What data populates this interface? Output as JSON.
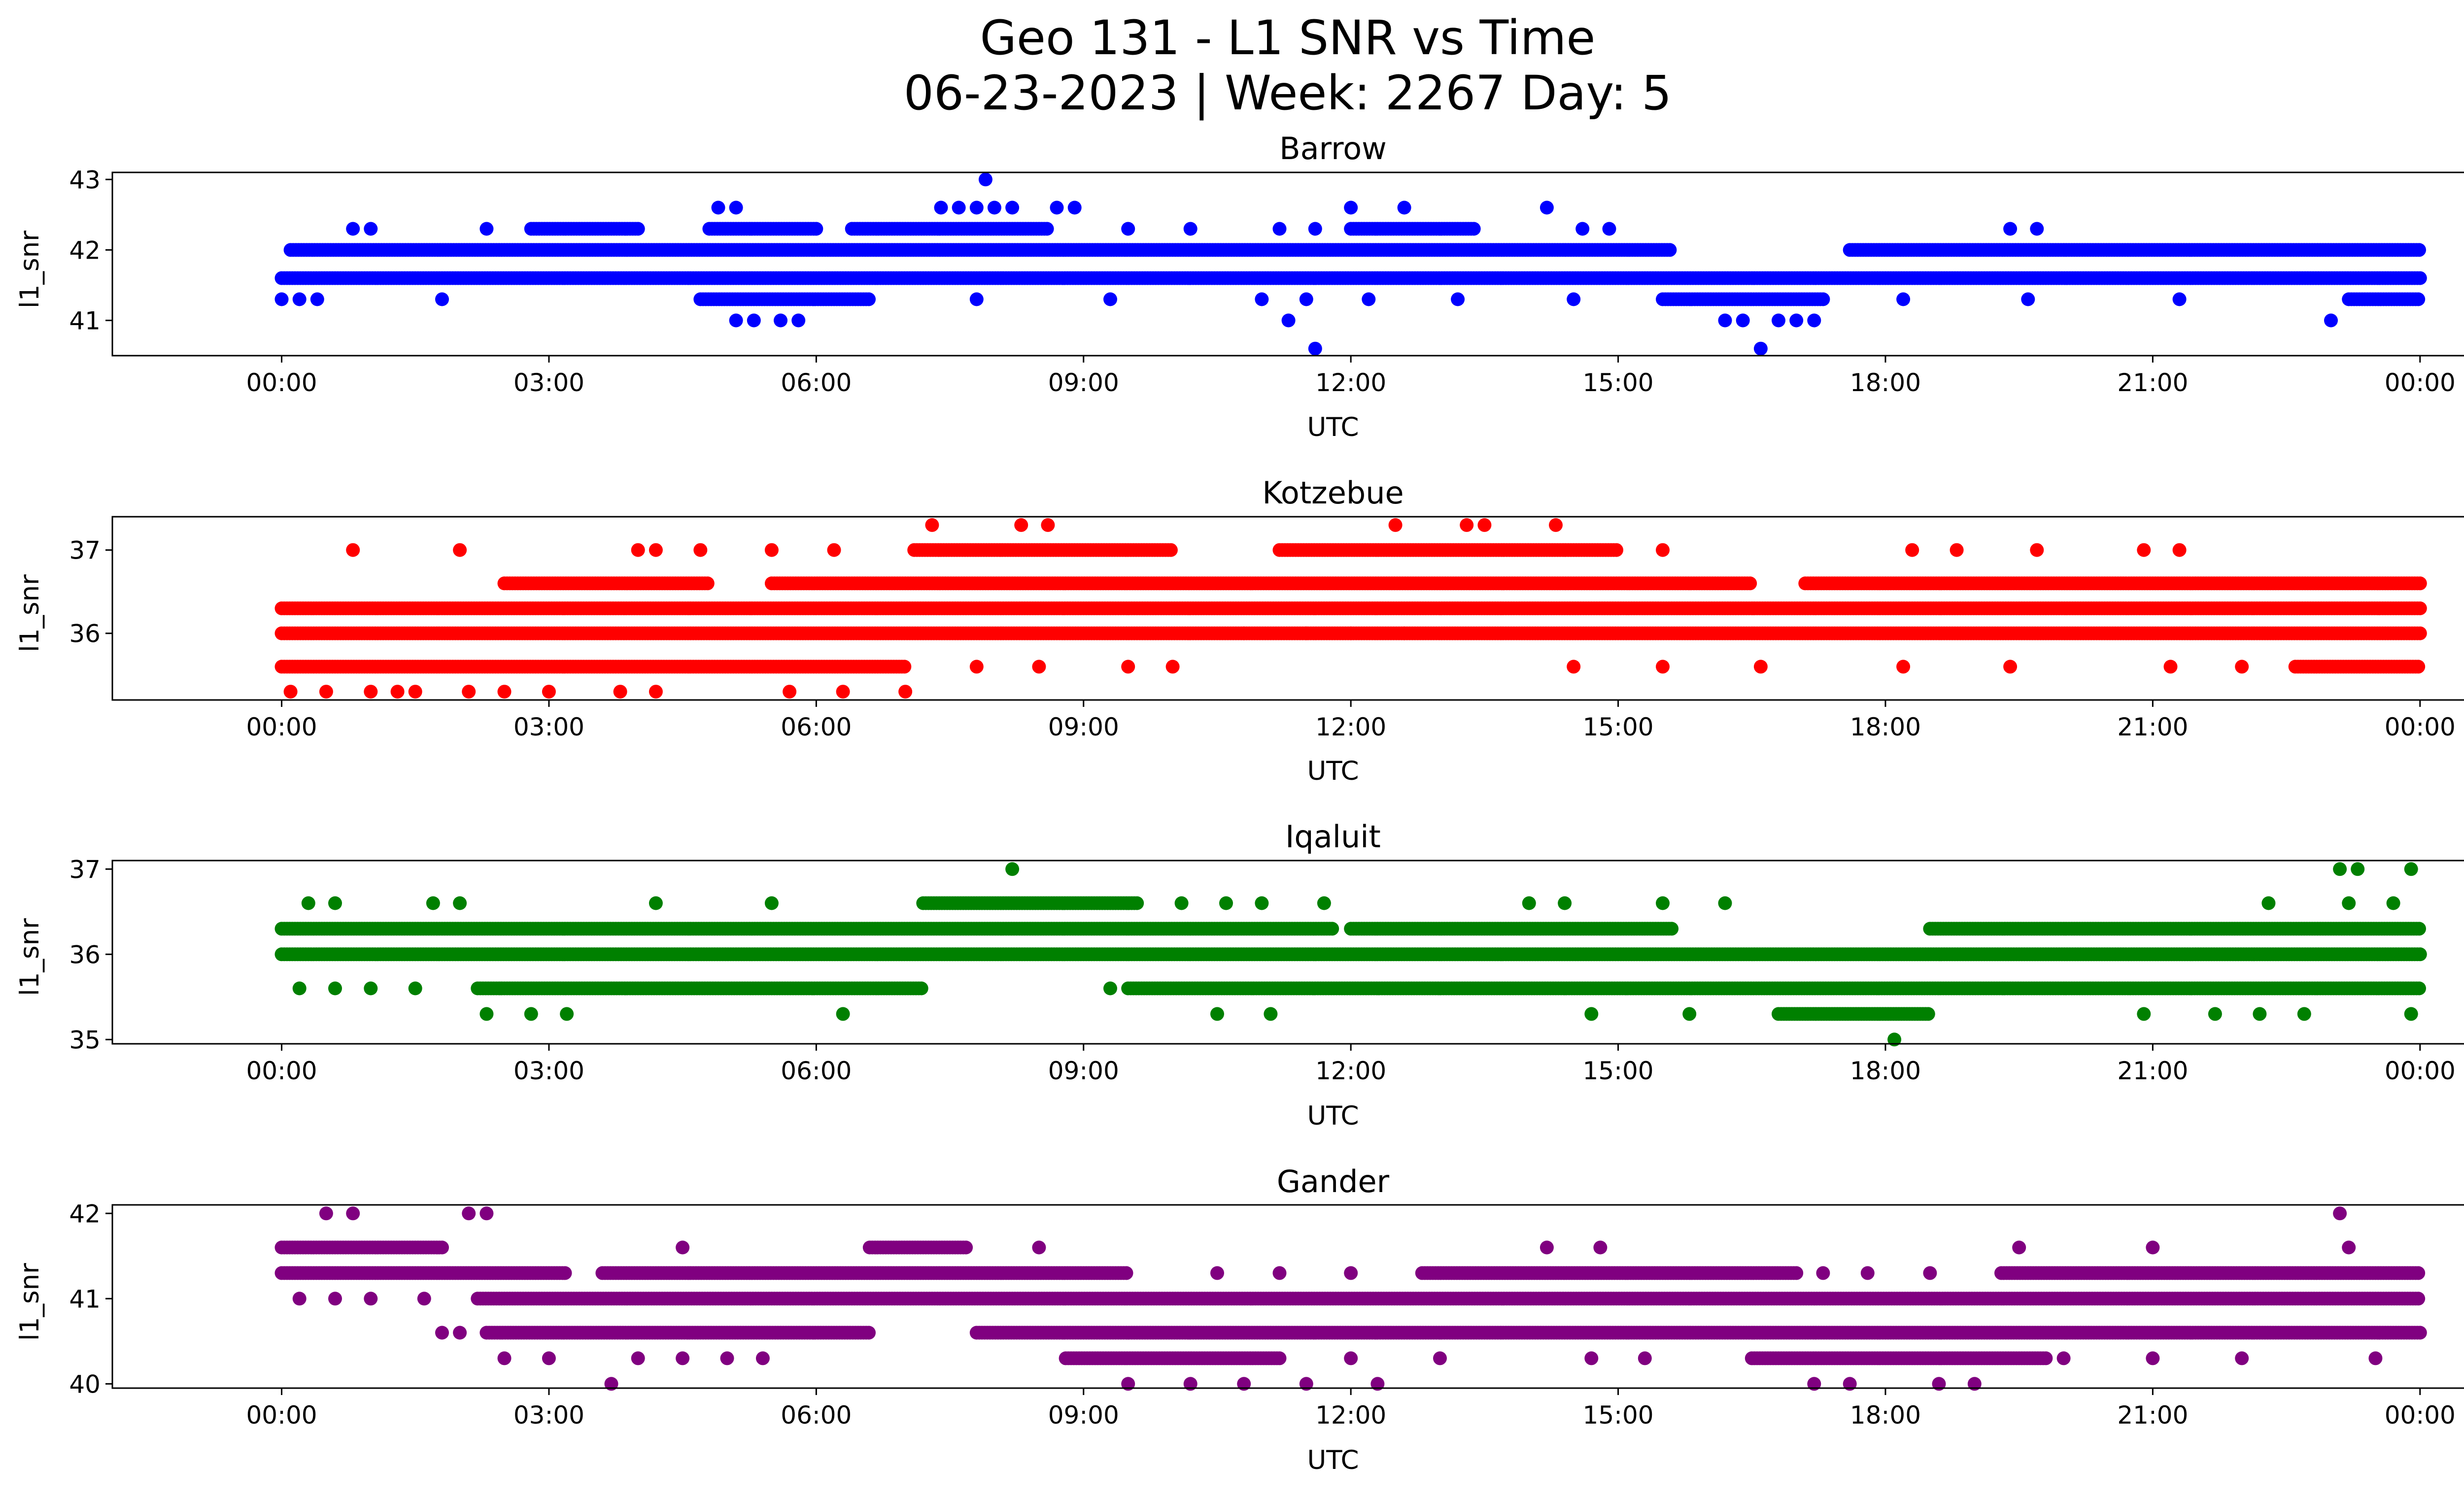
{
  "figure": {
    "title_line1": "Geo 131 - L1 SNR vs Time",
    "title_line2": "06-23-2023 | Week: 2267 Day: 5"
  },
  "chart_data": [
    {
      "type": "scatter",
      "title": "Barrow",
      "xlabel": "UTC",
      "ylabel": "l1_snr",
      "color": "#0000ff",
      "x_unit": "hours",
      "xlim": [
        -1.9,
        25.5
      ],
      "ylim": [
        40.5,
        43.1
      ],
      "x_ticks": [
        "00:00",
        "03:00",
        "06:00",
        "09:00",
        "12:00",
        "15:00",
        "18:00",
        "21:00",
        "00:00"
      ],
      "y_ticks": [
        41,
        42,
        43
      ],
      "levels": [
        {
          "y": 41.6,
          "ranges": [
            [
              0,
              24
            ]
          ]
        },
        {
          "y": 42.0,
          "ranges": [
            [
              0.1,
              15.6
            ],
            [
              17.6,
              24
            ]
          ]
        },
        {
          "y": 41.3,
          "ranges": [
            [
              4.7,
              6.6
            ],
            [
              15.5,
              17.3
            ],
            [
              23.2,
              24
            ]
          ]
        },
        {
          "y": 42.3,
          "ranges": [
            [
              2.8,
              4.0
            ],
            [
              4.8,
              6.0
            ],
            [
              6.4,
              8.6
            ],
            [
              12.0,
              13.4
            ]
          ]
        }
      ],
      "points": [
        [
          0.0,
          41.3
        ],
        [
          0.2,
          41.3
        ],
        [
          0.4,
          41.3
        ],
        [
          1.8,
          41.3
        ],
        [
          7.8,
          41.3
        ],
        [
          9.3,
          41.3
        ],
        [
          11.0,
          41.3
        ],
        [
          11.5,
          41.3
        ],
        [
          12.2,
          41.3
        ],
        [
          13.2,
          41.3
        ],
        [
          14.5,
          41.3
        ],
        [
          18.2,
          41.3
        ],
        [
          19.6,
          41.3
        ],
        [
          21.3,
          41.3
        ],
        [
          0.8,
          42.3
        ],
        [
          1.0,
          42.3
        ],
        [
          2.3,
          42.3
        ],
        [
          9.5,
          42.3
        ],
        [
          10.2,
          42.3
        ],
        [
          11.2,
          42.3
        ],
        [
          11.6,
          42.3
        ],
        [
          14.6,
          42.3
        ],
        [
          14.9,
          42.3
        ],
        [
          19.4,
          42.3
        ],
        [
          19.7,
          42.3
        ],
        [
          4.9,
          42.6
        ],
        [
          5.1,
          42.6
        ],
        [
          7.4,
          42.6
        ],
        [
          7.6,
          42.6
        ],
        [
          7.8,
          42.6
        ],
        [
          8.0,
          42.6
        ],
        [
          8.2,
          42.6
        ],
        [
          8.7,
          42.6
        ],
        [
          8.9,
          42.6
        ],
        [
          12.0,
          42.6
        ],
        [
          12.6,
          42.6
        ],
        [
          14.2,
          42.6
        ],
        [
          7.9,
          43.0
        ],
        [
          5.1,
          41.0
        ],
        [
          5.3,
          41.0
        ],
        [
          5.6,
          41.0
        ],
        [
          5.8,
          41.0
        ],
        [
          11.3,
          41.0
        ],
        [
          16.2,
          41.0
        ],
        [
          16.4,
          41.0
        ],
        [
          16.8,
          41.0
        ],
        [
          17.0,
          41.0
        ],
        [
          17.2,
          41.0
        ],
        [
          23.0,
          41.0
        ],
        [
          11.6,
          40.6
        ],
        [
          16.6,
          40.6
        ]
      ]
    },
    {
      "type": "scatter",
      "title": "Kotzebue",
      "xlabel": "UTC",
      "ylabel": "l1_snr",
      "color": "#ff0000",
      "x_unit": "hours",
      "xlim": [
        -1.9,
        25.5
      ],
      "ylim": [
        35.2,
        37.4
      ],
      "x_ticks": [
        "00:00",
        "03:00",
        "06:00",
        "09:00",
        "12:00",
        "15:00",
        "18:00",
        "21:00",
        "00:00"
      ],
      "y_ticks": [
        36,
        37
      ],
      "levels": [
        {
          "y": 36.3,
          "ranges": [
            [
              0,
              24
            ]
          ]
        },
        {
          "y": 36.0,
          "ranges": [
            [
              0,
              24
            ]
          ]
        },
        {
          "y": 35.6,
          "ranges": [
            [
              0,
              7.0
            ],
            [
              22.6,
              24
            ]
          ]
        },
        {
          "y": 36.6,
          "ranges": [
            [
              2.5,
              4.8
            ],
            [
              5.5,
              16.5
            ],
            [
              17.1,
              24
            ]
          ]
        },
        {
          "y": 37.0,
          "ranges": [
            [
              7.1,
              10.0
            ],
            [
              11.2,
              15.0
            ]
          ]
        }
      ],
      "points": [
        [
          0.1,
          35.3
        ],
        [
          0.5,
          35.3
        ],
        [
          1.0,
          35.3
        ],
        [
          1.3,
          35.3
        ],
        [
          1.5,
          35.3
        ],
        [
          2.1,
          35.3
        ],
        [
          2.5,
          35.3
        ],
        [
          3.0,
          35.3
        ],
        [
          3.8,
          35.3
        ],
        [
          4.2,
          35.3
        ],
        [
          5.7,
          35.3
        ],
        [
          6.3,
          35.3
        ],
        [
          7.0,
          35.3
        ],
        [
          0.8,
          37.0
        ],
        [
          2.0,
          37.0
        ],
        [
          4.0,
          37.0
        ],
        [
          4.2,
          37.0
        ],
        [
          4.7,
          37.0
        ],
        [
          5.5,
          37.0
        ],
        [
          6.2,
          37.0
        ],
        [
          15.5,
          37.0
        ],
        [
          18.3,
          37.0
        ],
        [
          18.8,
          37.0
        ],
        [
          19.7,
          37.0
        ],
        [
          20.9,
          37.0
        ],
        [
          21.3,
          37.0
        ],
        [
          7.3,
          37.3
        ],
        [
          8.3,
          37.3
        ],
        [
          8.6,
          37.3
        ],
        [
          12.5,
          37.3
        ],
        [
          13.3,
          37.3
        ],
        [
          13.5,
          37.3
        ],
        [
          14.3,
          37.3
        ],
        [
          7.8,
          35.6
        ],
        [
          8.5,
          35.6
        ],
        [
          9.5,
          35.6
        ],
        [
          10.0,
          35.6
        ],
        [
          14.5,
          35.6
        ],
        [
          15.5,
          35.6
        ],
        [
          16.6,
          35.6
        ],
        [
          18.2,
          35.6
        ],
        [
          19.4,
          35.6
        ],
        [
          21.2,
          35.6
        ],
        [
          22.0,
          35.6
        ],
        [
          10.8,
          36.0
        ],
        [
          11.5,
          36.0
        ],
        [
          12.0,
          36.0
        ],
        [
          12.6,
          36.0
        ]
      ]
    },
    {
      "type": "scatter",
      "title": "Iqaluit",
      "xlabel": "UTC",
      "ylabel": "l1_snr",
      "color": "#008000",
      "x_unit": "hours",
      "xlim": [
        -1.9,
        25.5
      ],
      "ylim": [
        34.95,
        37.1
      ],
      "x_ticks": [
        "00:00",
        "03:00",
        "06:00",
        "09:00",
        "12:00",
        "15:00",
        "18:00",
        "21:00",
        "00:00"
      ],
      "y_ticks": [
        35,
        36,
        37
      ],
      "levels": [
        {
          "y": 36.3,
          "ranges": [
            [
              0,
              11.8
            ],
            [
              12.0,
              15.6
            ],
            [
              18.5,
              24
            ]
          ]
        },
        {
          "y": 36.0,
          "ranges": [
            [
              0,
              24
            ]
          ]
        },
        {
          "y": 35.6,
          "ranges": [
            [
              2.2,
              7.2
            ],
            [
              9.5,
              24
            ]
          ]
        },
        {
          "y": 36.6,
          "ranges": [
            [
              7.2,
              9.6
            ]
          ]
        },
        {
          "y": 35.3,
          "ranges": [
            [
              16.8,
              18.5
            ]
          ]
        }
      ],
      "points": [
        [
          0.3,
          36.6
        ],
        [
          0.6,
          36.6
        ],
        [
          1.7,
          36.6
        ],
        [
          2.0,
          36.6
        ],
        [
          4.2,
          36.6
        ],
        [
          5.5,
          36.6
        ],
        [
          10.1,
          36.6
        ],
        [
          10.6,
          36.6
        ],
        [
          11.0,
          36.6
        ],
        [
          11.7,
          36.6
        ],
        [
          14.0,
          36.6
        ],
        [
          14.4,
          36.6
        ],
        [
          15.5,
          36.6
        ],
        [
          16.2,
          36.6
        ],
        [
          22.3,
          36.6
        ],
        [
          23.2,
          36.6
        ],
        [
          23.7,
          36.6
        ],
        [
          8.2,
          37.0
        ],
        [
          23.1,
          37.0
        ],
        [
          23.3,
          37.0
        ],
        [
          23.9,
          37.0
        ],
        [
          0.2,
          35.6
        ],
        [
          0.6,
          35.6
        ],
        [
          1.0,
          35.6
        ],
        [
          1.5,
          35.6
        ],
        [
          9.3,
          35.6
        ],
        [
          2.3,
          35.3
        ],
        [
          2.8,
          35.3
        ],
        [
          3.2,
          35.3
        ],
        [
          6.3,
          35.3
        ],
        [
          10.5,
          35.3
        ],
        [
          11.1,
          35.3
        ],
        [
          14.7,
          35.3
        ],
        [
          15.8,
          35.3
        ],
        [
          20.9,
          35.3
        ],
        [
          21.7,
          35.3
        ],
        [
          22.2,
          35.3
        ],
        [
          22.7,
          35.3
        ],
        [
          23.9,
          35.3
        ],
        [
          18.1,
          35.0
        ]
      ]
    },
    {
      "type": "scatter",
      "title": "Gander",
      "xlabel": "UTC",
      "ylabel": "l1_snr",
      "color": "#800080",
      "x_unit": "hours",
      "xlim": [
        -1.9,
        25.5
      ],
      "ylim": [
        39.95,
        42.1
      ],
      "x_ticks": [
        "00:00",
        "03:00",
        "06:00",
        "09:00",
        "12:00",
        "15:00",
        "18:00",
        "21:00",
        "00:00"
      ],
      "y_ticks": [
        40,
        41,
        42
      ],
      "levels": [
        {
          "y": 41.3,
          "ranges": [
            [
              0,
              3.2
            ],
            [
              3.6,
              9.5
            ],
            [
              12.8,
              17.0
            ],
            [
              19.3,
              24
            ]
          ]
        },
        {
          "y": 41.0,
          "ranges": [
            [
              2.2,
              24
            ]
          ]
        },
        {
          "y": 40.6,
          "ranges": [
            [
              2.3,
              6.6
            ],
            [
              7.8,
              24
            ]
          ]
        },
        {
          "y": 41.6,
          "ranges": [
            [
              0,
              1.8
            ],
            [
              6.6,
              7.7
            ]
          ]
        },
        {
          "y": 40.3,
          "ranges": [
            [
              8.8,
              11.2
            ],
            [
              16.5,
              19.8
            ]
          ]
        }
      ],
      "points": [
        [
          0.5,
          42.0
        ],
        [
          0.8,
          42.0
        ],
        [
          2.1,
          42.0
        ],
        [
          2.3,
          42.0
        ],
        [
          23.1,
          42.0
        ],
        [
          4.5,
          41.6
        ],
        [
          8.5,
          41.6
        ],
        [
          14.2,
          41.6
        ],
        [
          14.8,
          41.6
        ],
        [
          19.5,
          41.6
        ],
        [
          21.0,
          41.6
        ],
        [
          23.2,
          41.6
        ],
        [
          0.2,
          41.0
        ],
        [
          0.6,
          41.0
        ],
        [
          1.0,
          41.0
        ],
        [
          1.6,
          41.0
        ],
        [
          1.8,
          40.6
        ],
        [
          2.0,
          40.6
        ],
        [
          2.5,
          40.3
        ],
        [
          3.0,
          40.3
        ],
        [
          4.0,
          40.3
        ],
        [
          4.5,
          40.3
        ],
        [
          5.0,
          40.3
        ],
        [
          5.4,
          40.3
        ],
        [
          12.0,
          40.3
        ],
        [
          13.0,
          40.3
        ],
        [
          14.7,
          40.3
        ],
        [
          15.3,
          40.3
        ],
        [
          20.0,
          40.3
        ],
        [
          21.0,
          40.3
        ],
        [
          22.0,
          40.3
        ],
        [
          23.5,
          40.3
        ],
        [
          3.7,
          40.0
        ],
        [
          9.5,
          40.0
        ],
        [
          10.2,
          40.0
        ],
        [
          10.8,
          40.0
        ],
        [
          11.5,
          40.0
        ],
        [
          12.3,
          40.0
        ],
        [
          17.2,
          40.0
        ],
        [
          17.6,
          40.0
        ],
        [
          18.6,
          40.0
        ],
        [
          19.0,
          40.0
        ],
        [
          10.5,
          41.3
        ],
        [
          11.2,
          41.3
        ],
        [
          12.0,
          41.3
        ],
        [
          17.3,
          41.3
        ],
        [
          17.8,
          41.3
        ],
        [
          18.5,
          41.3
        ]
      ]
    }
  ]
}
